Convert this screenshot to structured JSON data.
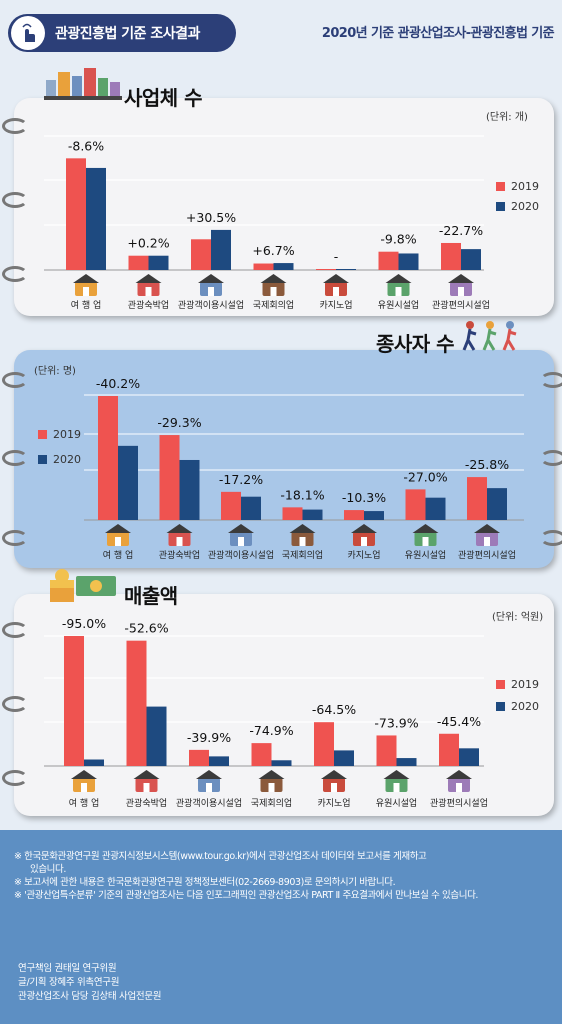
{
  "header": {
    "badge_title": "관광진흥법 기준 조사결과",
    "subtitle": "2020년 기준 관광산업조사-관광진흥법 기준"
  },
  "colors": {
    "y2019": "#ef5350",
    "y2020": "#1e4a80",
    "panel_blue": "#a9c7e8",
    "footer": "#5d8fc3"
  },
  "legend": {
    "y2019": "2019",
    "y2020": "2020"
  },
  "chart_data": [
    {
      "type": "bar",
      "title": "사업체 수",
      "unit": "(단위: 개)",
      "categories": [
        "여 행 업",
        "관광숙박업",
        "관광객이용시설업",
        "국제회의업",
        "카지노업",
        "유원시설업",
        "관광편의시설업"
      ],
      "series": [
        {
          "name": "2019",
          "values": [
            100,
            12.8,
            27.5,
            5.8,
            0.6,
            16.4,
            24.2
          ]
        },
        {
          "name": "2020",
          "values": [
            91.4,
            12.8,
            35.9,
            6.2,
            0.6,
            14.8,
            18.7
          ]
        }
      ],
      "change_labels": [
        "-8.6%",
        "+0.2%",
        "+30.5%",
        "+6.7%",
        "-",
        "-9.8%",
        "-22.7%"
      ],
      "ylim": [
        0,
        120
      ]
    },
    {
      "type": "bar",
      "title": "종사자 수",
      "unit": "(단위: 명)",
      "categories": [
        "여 행 업",
        "관광숙박업",
        "관광객이용시설업",
        "국제회의업",
        "카지노업",
        "유원시설업",
        "관광편의시설업"
      ],
      "series": [
        {
          "name": "2019",
          "values": [
            100,
            68.5,
            22.7,
            10.2,
            8.0,
            24.7,
            34.6
          ]
        },
        {
          "name": "2020",
          "values": [
            59.8,
            48.4,
            18.8,
            8.4,
            7.2,
            18.0,
            25.7
          ]
        }
      ],
      "change_labels": [
        "-40.2%",
        "-29.3%",
        "-17.2%",
        "-18.1%",
        "-10.3%",
        "-27.0%",
        "-25.8%"
      ],
      "ylim": [
        0,
        100
      ]
    },
    {
      "type": "bar",
      "title": "매출액",
      "unit": "(단위: 억원)",
      "categories": [
        "여 행 업",
        "관광숙박업",
        "관광객이용시설업",
        "국제회의업",
        "카지노업",
        "유원시설업",
        "관광편의시설업"
      ],
      "series": [
        {
          "name": "2019",
          "values": [
            100,
            96.4,
            12.4,
            17.6,
            33.7,
            23.5,
            24.8
          ]
        },
        {
          "name": "2020",
          "values": [
            5.0,
            45.7,
            7.4,
            4.4,
            12.0,
            6.1,
            13.6
          ]
        }
      ],
      "change_labels": [
        "-95.0%",
        "-52.6%",
        "-39.9%",
        "-74.9%",
        "-64.5%",
        "-73.9%",
        "-45.4%"
      ],
      "ylim": [
        0,
        100
      ]
    }
  ],
  "footer": {
    "notes": [
      "※ 한국문화관광연구원 관광지식정보시스템(www.tour.go.kr)에서 관광산업조사 데이터와 보고서를 게재하고",
      "있습니다.",
      "※ 보고서에 관한 내용은 한국문화관광연구원 정책정보센터(02-2669-8903)로 문의하시기 바랍니다.",
      "※ '관광산업특수분류' 기준의 관광산업조사는 다음 인포그래픽인 관광산업조사 PART Ⅱ 주요결과에서 만나보실 수 있습니다."
    ],
    "credits": [
      "연구책임   권태일  연구위원",
      "글/기획    장혜주 위촉연구원",
      "관광산업조사 담당 김상태 사업전문원"
    ]
  }
}
